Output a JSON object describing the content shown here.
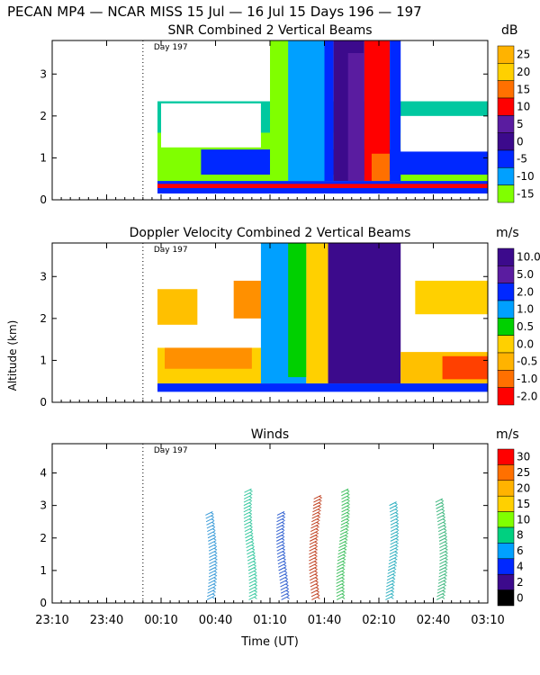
{
  "header": "PECAN MP4 — NCAR MISS  15 Jul — 16 Jul 15 Days 196 — 197",
  "y_axis_label": "Altitude (km)",
  "x_axis_label": "Time (UT)",
  "day_marker_label": "Day 197",
  "time_range_minutes": [
    0,
    240
  ],
  "day_boundary_minute": 50,
  "x_ticks": [
    "23:10",
    "23:40",
    "00:10",
    "00:40",
    "01:10",
    "01:40",
    "02:10",
    "02:40",
    "03:10"
  ],
  "colors": {
    "axis": "#000000",
    "dots": "#000000"
  },
  "chart_data": [
    {
      "id": "snr",
      "type": "heatmap",
      "title": "SNR Combined 2 Vertical Beams",
      "unit": "dB",
      "ylim": [
        0,
        3.8
      ],
      "y_ticks": [
        "0",
        "1",
        "2",
        "3"
      ],
      "colorbar": {
        "labels": [
          "25",
          "20",
          "15",
          "10",
          "5",
          "0",
          "-5",
          "-10",
          "-15"
        ],
        "colors": [
          "#ffb300",
          "#ffd000",
          "#ff7000",
          "#ff0000",
          "#5a1ca0",
          "#3c0a8c",
          "#0028ff",
          "#00a0ff",
          "#80ff00"
        ]
      },
      "regions": [
        {
          "t": [
            58,
            240
          ],
          "z": [
            0.15,
            0.45
          ],
          "c": "#0028ff"
        },
        {
          "t": [
            58,
            240
          ],
          "z": [
            0.28,
            0.38
          ],
          "c": "#ff0000"
        },
        {
          "t": [
            58,
            240
          ],
          "z": [
            0.45,
            1.6
          ],
          "c": "#80ff00"
        },
        {
          "t": [
            58,
            240
          ],
          "z": [
            1.6,
            2.35
          ],
          "c": "#00c8a0"
        },
        {
          "t": [
            82,
            240
          ],
          "z": [
            0.6,
            1.2
          ],
          "c": "#0028ff"
        },
        {
          "t": [
            120,
            150
          ],
          "z": [
            0.45,
            3.8
          ],
          "c": "#80ff00"
        },
        {
          "t": [
            130,
            150
          ],
          "z": [
            0.45,
            3.8
          ],
          "c": "#00a0ff"
        },
        {
          "t": [
            150,
            155
          ],
          "z": [
            0.45,
            3.8
          ],
          "c": "#0028ff"
        },
        {
          "t": [
            155,
            172
          ],
          "z": [
            0.45,
            3.8
          ],
          "c": "#3c0a8c"
        },
        {
          "t": [
            163,
            172
          ],
          "z": [
            0.45,
            3.5
          ],
          "c": "#5a1ca0"
        },
        {
          "t": [
            172,
            186
          ],
          "z": [
            0.45,
            3.8
          ],
          "c": "#ff0000"
        },
        {
          "t": [
            176,
            186
          ],
          "z": [
            0.45,
            1.1
          ],
          "c": "#ff7000"
        },
        {
          "t": [
            186,
            192
          ],
          "z": [
            0.45,
            3.8
          ],
          "c": "#0028ff"
        },
        {
          "t": [
            192,
            240
          ],
          "z": [
            1.15,
            2.0
          ],
          "c": "#ffffff"
        },
        {
          "t": [
            60,
            115
          ],
          "z": [
            1.25,
            2.3
          ],
          "c": "#ffffff"
        }
      ]
    },
    {
      "id": "doppler",
      "type": "heatmap",
      "title": "Doppler Velocity Combined 2 Vertical Beams",
      "unit": "m/s",
      "ylim": [
        0,
        3.8
      ],
      "y_ticks": [
        "0",
        "1",
        "2",
        "3"
      ],
      "colorbar": {
        "labels": [
          "10.0",
          "5.0",
          "2.0",
          "1.0",
          "0.5",
          "0.0",
          "-0.5",
          "-1.0",
          "-2.0"
        ],
        "colors": [
          "#3c0a8c",
          "#5a1ca0",
          "#0028ff",
          "#00a0ff",
          "#00d000",
          "#ffd000",
          "#ffb300",
          "#ff7000",
          "#ff0000"
        ]
      },
      "regions": [
        {
          "t": [
            58,
            240
          ],
          "z": [
            0.25,
            0.45
          ],
          "c": "#0028ff"
        },
        {
          "t": [
            58,
            120
          ],
          "z": [
            0.45,
            1.3
          ],
          "c": "#ffd000"
        },
        {
          "t": [
            62,
            110
          ],
          "z": [
            0.8,
            1.3
          ],
          "c": "#ff9000"
        },
        {
          "t": [
            58,
            80
          ],
          "z": [
            1.85,
            2.7
          ],
          "c": "#ffc000"
        },
        {
          "t": [
            100,
            118
          ],
          "z": [
            2.0,
            2.9
          ],
          "c": "#ff9000"
        },
        {
          "t": [
            115,
            140
          ],
          "z": [
            0.45,
            3.8
          ],
          "c": "#00a0ff"
        },
        {
          "t": [
            130,
            140
          ],
          "z": [
            0.6,
            3.8
          ],
          "c": "#00d000"
        },
        {
          "t": [
            140,
            152
          ],
          "z": [
            0.45,
            3.8
          ],
          "c": "#ffd000"
        },
        {
          "t": [
            152,
            192
          ],
          "z": [
            0.45,
            3.8
          ],
          "c": "#3c0a8c"
        },
        {
          "t": [
            192,
            240
          ],
          "z": [
            0.45,
            1.2
          ],
          "c": "#ffc000"
        },
        {
          "t": [
            215,
            240
          ],
          "z": [
            0.55,
            1.1
          ],
          "c": "#ff4000"
        },
        {
          "t": [
            200,
            240
          ],
          "z": [
            2.1,
            2.9
          ],
          "c": "#ffd000"
        }
      ]
    },
    {
      "id": "winds",
      "type": "scatter",
      "title": "Winds",
      "unit": "m/s",
      "ylim": [
        0,
        4.9
      ],
      "y_ticks": [
        "0",
        "1",
        "2",
        "3",
        "4"
      ],
      "colorbar": {
        "labels": [
          "30",
          "25",
          "20",
          "15",
          "10",
          "8",
          "6",
          "4",
          "2",
          "0"
        ],
        "colors": [
          "#ff0000",
          "#ff7000",
          "#ffb300",
          "#ffd000",
          "#80ff00",
          "#00d080",
          "#00a0ff",
          "#0028ff",
          "#3c0a8c",
          "#000000"
        ]
      },
      "profiles": [
        {
          "t": 85,
          "z": [
            0.1,
            2.75
          ],
          "c": "#3a9bd8"
        },
        {
          "t": 107,
          "z": [
            0.1,
            3.5
          ],
          "c": "#38c8a0"
        },
        {
          "t": 125,
          "z": [
            0.1,
            2.8
          ],
          "c": "#3060d0"
        },
        {
          "t": 143,
          "z": [
            0.1,
            3.3
          ],
          "c": "#c04020"
        },
        {
          "t": 158,
          "z": [
            0.1,
            3.5
          ],
          "c": "#40c060"
        },
        {
          "t": 185,
          "z": [
            0.1,
            3.1
          ],
          "c": "#30b0c0"
        },
        {
          "t": 212,
          "z": [
            0.1,
            3.2
          ],
          "c": "#40b880"
        }
      ]
    }
  ]
}
